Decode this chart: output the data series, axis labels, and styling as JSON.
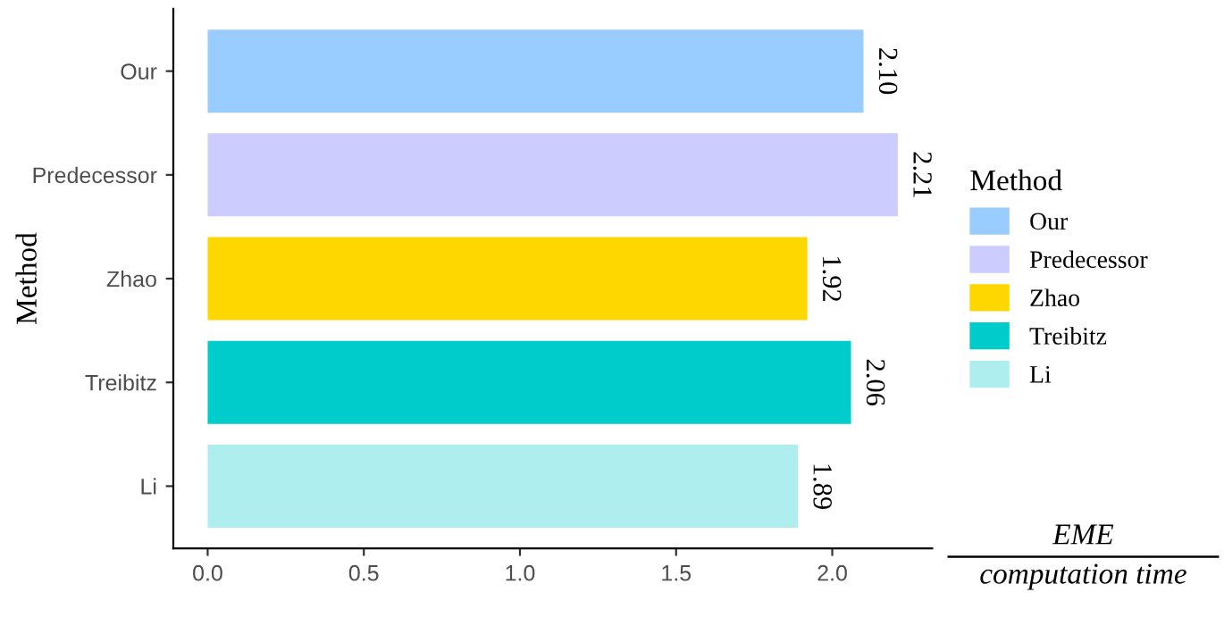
{
  "chart_data": {
    "type": "bar",
    "orientation": "horizontal",
    "categories": [
      "Our",
      "Predecessor",
      "Zhao",
      "Treibitz",
      "Li"
    ],
    "series": [
      {
        "name": "Our",
        "color": "#99ccff",
        "values": [
          2.1,
          null,
          null,
          null,
          null
        ],
        "value_labels": [
          "2.10",
          null,
          null,
          null,
          null
        ]
      },
      {
        "name": "Predecessor",
        "color": "#ccccff",
        "values": [
          null,
          2.21,
          null,
          null,
          null
        ],
        "value_labels": [
          null,
          "2.21",
          null,
          null,
          null
        ]
      },
      {
        "name": "Zhao",
        "color": "#ffd700",
        "values": [
          null,
          null,
          1.92,
          null,
          null
        ],
        "value_labels": [
          null,
          null,
          "1.92",
          null,
          null
        ]
      },
      {
        "name": "Treibitz",
        "color": "#00cccc",
        "values": [
          null,
          null,
          null,
          2.06,
          null
        ],
        "value_labels": [
          null,
          null,
          null,
          "2.06",
          null
        ]
      },
      {
        "name": "Li",
        "color": "#afeeee",
        "values": [
          null,
          null,
          null,
          null,
          1.89
        ],
        "value_labels": [
          null,
          null,
          null,
          null,
          "1.89"
        ]
      }
    ],
    "xlim": [
      -0.11,
      2.32
    ],
    "xticks": [
      {
        "value": 0,
        "label": "0.0"
      },
      0.5,
      {
        "value": 1,
        "label": "1.0"
      },
      1.5,
      {
        "value": 2,
        "label": "2.0"
      }
    ],
    "xlabel": "EME\ncomputation time",
    "ylabel": "Method",
    "legend_title": "Method",
    "legend": "right",
    "grid": false
  }
}
